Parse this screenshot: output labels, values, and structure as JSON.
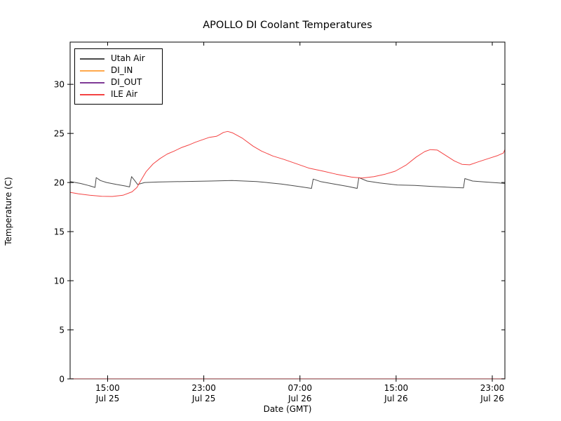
{
  "chart_data": {
    "type": "line",
    "title": "APOLLO DI Coolant Temperatures",
    "xlabel": "Date (GMT)",
    "ylabel": "Temperature (C)",
    "x_unit": "hours since Jul 25 00:00 GMT",
    "xlim_hours": [
      11.88,
      48.05
    ],
    "ylim": [
      0,
      34.3
    ],
    "grid": false,
    "legend_position": "upper-left",
    "x_ticks": [
      {
        "hour": 15,
        "time": "15:00",
        "date": "Jul 25"
      },
      {
        "hour": 23,
        "time": "23:00",
        "date": "Jul 25"
      },
      {
        "hour": 31,
        "time": "07:00",
        "date": "Jul 26"
      },
      {
        "hour": 39,
        "time": "15:00",
        "date": "Jul 26"
      },
      {
        "hour": 47,
        "time": "23:00",
        "date": "Jul 26"
      }
    ],
    "y_ticks": [
      0,
      5,
      10,
      15,
      20,
      25,
      30
    ],
    "series": [
      {
        "name": "Utah Air",
        "color": "#4a4a4a",
        "points": [
          [
            11.88,
            20.1
          ],
          [
            12.76,
            19.9
          ],
          [
            13.4,
            19.7
          ],
          [
            13.81,
            19.55
          ],
          [
            13.95,
            19.5
          ],
          [
            14.05,
            20.5
          ],
          [
            14.4,
            20.2
          ],
          [
            14.92,
            20.0
          ],
          [
            15.74,
            19.8
          ],
          [
            16.45,
            19.65
          ],
          [
            16.82,
            19.55
          ],
          [
            16.99,
            20.6
          ],
          [
            17.22,
            20.25
          ],
          [
            17.5,
            19.8
          ],
          [
            18.08,
            20.0
          ],
          [
            19.2,
            20.05
          ],
          [
            21.24,
            20.1
          ],
          [
            23.59,
            20.15
          ],
          [
            25.34,
            20.2
          ],
          [
            27.39,
            20.1
          ],
          [
            29.44,
            19.85
          ],
          [
            30.9,
            19.6
          ],
          [
            31.96,
            19.4
          ],
          [
            32.1,
            20.35
          ],
          [
            32.7,
            20.1
          ],
          [
            33.83,
            19.85
          ],
          [
            35.0,
            19.6
          ],
          [
            35.76,
            19.4
          ],
          [
            35.9,
            20.5
          ],
          [
            36.58,
            20.15
          ],
          [
            37.63,
            19.95
          ],
          [
            39.1,
            19.75
          ],
          [
            40.56,
            19.7
          ],
          [
            42.02,
            19.6
          ],
          [
            43.66,
            19.5
          ],
          [
            44.6,
            19.45
          ],
          [
            44.72,
            20.4
          ],
          [
            45.36,
            20.15
          ],
          [
            46.41,
            20.05
          ],
          [
            47.58,
            19.95
          ],
          [
            48.05,
            19.9
          ]
        ]
      },
      {
        "name": "DI_IN",
        "color": "#ffa94d",
        "points": [
          [
            11.88,
            0.02
          ],
          [
            48.05,
            0.02
          ]
        ]
      },
      {
        "name": "DI_OUT",
        "color": "#7f3a96",
        "points": [
          [
            11.88,
            0.02
          ],
          [
            48.05,
            0.02
          ]
        ]
      },
      {
        "name": "ILE Air",
        "color": "#f44343",
        "points": [
          [
            11.88,
            19.0
          ],
          [
            12.58,
            18.85
          ],
          [
            13.52,
            18.7
          ],
          [
            14.51,
            18.6
          ],
          [
            15.39,
            18.58
          ],
          [
            16.27,
            18.7
          ],
          [
            17.03,
            19.05
          ],
          [
            17.44,
            19.5
          ],
          [
            17.67,
            20.0
          ],
          [
            18.2,
            21.1
          ],
          [
            18.79,
            21.9
          ],
          [
            19.37,
            22.45
          ],
          [
            19.96,
            22.9
          ],
          [
            20.54,
            23.2
          ],
          [
            21.13,
            23.55
          ],
          [
            21.71,
            23.8
          ],
          [
            22.3,
            24.1
          ],
          [
            22.88,
            24.35
          ],
          [
            23.47,
            24.6
          ],
          [
            24.05,
            24.7
          ],
          [
            24.29,
            24.85
          ],
          [
            24.64,
            25.1
          ],
          [
            24.99,
            25.2
          ],
          [
            25.4,
            25.05
          ],
          [
            26.22,
            24.5
          ],
          [
            27.1,
            23.7
          ],
          [
            27.8,
            23.2
          ],
          [
            28.74,
            22.7
          ],
          [
            29.67,
            22.35
          ],
          [
            30.61,
            21.95
          ],
          [
            31.78,
            21.45
          ],
          [
            32.95,
            21.15
          ],
          [
            34.0,
            20.85
          ],
          [
            35.29,
            20.55
          ],
          [
            36.17,
            20.45
          ],
          [
            37.16,
            20.6
          ],
          [
            38.1,
            20.85
          ],
          [
            38.92,
            21.15
          ],
          [
            39.86,
            21.8
          ],
          [
            40.68,
            22.6
          ],
          [
            41.38,
            23.15
          ],
          [
            41.85,
            23.35
          ],
          [
            42.43,
            23.3
          ],
          [
            43.13,
            22.75
          ],
          [
            43.84,
            22.2
          ],
          [
            44.48,
            21.85
          ],
          [
            45.12,
            21.8
          ],
          [
            45.83,
            22.1
          ],
          [
            46.7,
            22.45
          ],
          [
            47.46,
            22.75
          ],
          [
            47.93,
            23.0
          ],
          [
            48.05,
            23.35
          ]
        ]
      }
    ]
  }
}
